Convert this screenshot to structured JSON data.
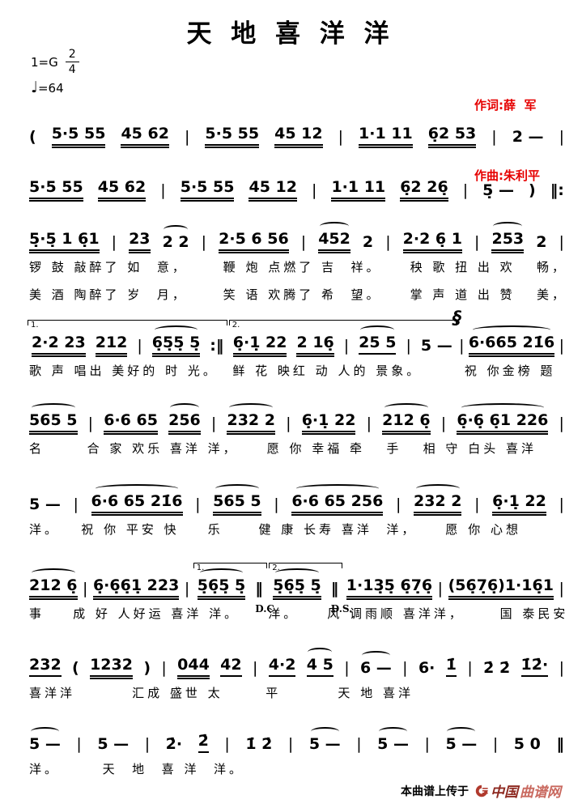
{
  "title": "天 地 喜 洋 洋",
  "credits": {
    "lyricist": "作词:薛  军",
    "composer": "作曲:朱利平"
  },
  "key": {
    "tonic": "1=G",
    "meter_num": "2",
    "meter_den": "4",
    "tempo_note": "♩",
    "tempo": "=64"
  },
  "colors": {
    "credit_red": "#e60000",
    "logo_dark": "#8e2a21",
    "logo_light": "#c9695f"
  },
  "symbols": {
    "segno": "§",
    "quarter_note": "♩"
  },
  "systems": [
    {
      "tokens": [
        {
          "t": "("
        },
        {
          "t": "5·5 55",
          "u": 2
        },
        {
          "t": "45 62",
          "u": 2
        },
        {
          "t": "|",
          "bar": true
        },
        {
          "t": "5·5 55",
          "u": 2
        },
        {
          "t": "45 12",
          "u": 2
        },
        {
          "t": "|",
          "bar": true
        },
        {
          "t": "1·1 11",
          "u": 2
        },
        {
          "t": "6̣2 53",
          "u": 2
        },
        {
          "t": "|",
          "bar": true
        },
        {
          "t": "2 —"
        },
        {
          "t": "|",
          "bar": true
        }
      ],
      "lyrics": []
    },
    {
      "tokens": [
        {
          "t": "5·5 55",
          "u": 2
        },
        {
          "t": "45 62",
          "u": 2
        },
        {
          "t": "|",
          "bar": true
        },
        {
          "t": "5·5 55",
          "u": 2
        },
        {
          "t": "45 12",
          "u": 2
        },
        {
          "t": "|",
          "bar": true
        },
        {
          "t": "1·1 11",
          "u": 2
        },
        {
          "t": "6̣2 26̣",
          "u": 2
        },
        {
          "t": "|",
          "bar": true
        },
        {
          "t": "5̣ —"
        },
        {
          "t": ")"
        },
        {
          "t": "‖:",
          "heavy": true
        }
      ],
      "lyrics": []
    },
    {
      "tokens": [
        {
          "t": "5̣·5̣ 1 6̣1",
          "u": 2
        },
        {
          "t": "|",
          "bar": true
        },
        {
          "t": "23",
          "u": 2
        },
        {
          "t": "2 2",
          "arc": true
        },
        {
          "t": "|",
          "bar": true
        },
        {
          "t": "2·5 6 56",
          "u": 2
        },
        {
          "t": "|",
          "bar": true
        },
        {
          "t": "452",
          "u": 2,
          "arc": true
        },
        {
          "t": "2"
        },
        {
          "t": "|",
          "bar": true
        },
        {
          "t": "2·2 6̣ 1",
          "u": 2
        },
        {
          "t": "|",
          "bar": true
        },
        {
          "t": "253",
          "u": 2,
          "arc": true
        },
        {
          "t": "2"
        },
        {
          "t": "|",
          "bar": true
        }
      ],
      "lyrics": [
        "锣 鼓 敲醉了 如  意，     鞭 炮 点燃了 吉  祥。    秧 歌 扭 出 欢   畅，",
        "美 酒 陶醉了 岁  月，     笑 语 欢腾了 希  望。    掌 声 道 出 赞   美，"
      ]
    },
    {
      "tokens": [
        {
          "volta": "1.",
          "tokens": [
            {
              "t": "2·2 23",
              "u": 2
            },
            {
              "t": "212",
              "u": 2
            },
            {
              "t": "|",
              "bar": true
            },
            {
              "t": "6̣5̣5̣ 5̣",
              "u": 2,
              "arc": true
            },
            {
              "t": ":‖",
              "heavy": true
            }
          ]
        },
        {
          "volta": "2.",
          "tokens": [
            {
              "t": "6̣·1̣ 22",
              "u": 2
            },
            {
              "t": "2 16̣",
              "u": 2
            },
            {
              "t": "|",
              "bar": true
            },
            {
              "t": "25 5",
              "u": 1,
              "arc": true
            },
            {
              "t": "|",
              "bar": true
            },
            {
              "t": "5 —"
            }
          ]
        },
        {
          "t": "|",
          "bar": true,
          "sup": "segno"
        },
        {
          "t": "6·665 21̇6",
          "u": 2,
          "arc": true
        },
        {
          "t": "|",
          "bar": true
        }
      ],
      "lyrics": [
        "歌 声 唱出 美好的 时 光。  鲜 花 映红 动 人的 景象。      祝 你金榜 题"
      ]
    },
    {
      "tokens": [
        {
          "t": "565 5",
          "u": 2,
          "arc": true
        },
        {
          "t": "|",
          "bar": true
        },
        {
          "t": "6·6 65",
          "u": 2
        },
        {
          "t": "256",
          "u": 2,
          "arc": true
        },
        {
          "t": "|",
          "bar": true
        },
        {
          "t": "232 2",
          "u": 2,
          "arc": true
        },
        {
          "t": "|",
          "bar": true
        },
        {
          "t": "6̣·1̣ 22",
          "u": 2
        },
        {
          "t": "|",
          "bar": true
        },
        {
          "t": "212 6̣",
          "u": 2,
          "arc": true
        },
        {
          "t": "|",
          "bar": true
        },
        {
          "t": "6̣·6̣ 6̣1 226",
          "u": 2,
          "arc": true
        },
        {
          "t": "|",
          "bar": true
        }
      ],
      "lyrics": [
        "名      合 家 欢乐 喜洋 洋，    愿 你 幸福 牵   手   相 守 白头 喜洋"
      ]
    },
    {
      "tokens": [
        {
          "t": "5 —"
        },
        {
          "t": "|",
          "bar": true
        },
        {
          "t": "6·6 65 21̇6",
          "u": 2,
          "arc": true
        },
        {
          "t": "|",
          "bar": true
        },
        {
          "t": "565 5",
          "u": 2,
          "arc": true
        },
        {
          "t": "|",
          "bar": true
        },
        {
          "t": "6·6 65 256",
          "u": 2,
          "arc": true
        },
        {
          "t": "|",
          "bar": true
        },
        {
          "t": "232 2",
          "u": 2,
          "arc": true
        },
        {
          "t": "|",
          "bar": true
        },
        {
          "t": "6̣·1̣ 22",
          "u": 2
        },
        {
          "t": "|",
          "bar": true
        }
      ],
      "lyrics": [
        "洋。   祝 你 平安 快    乐     健 康 长寿 喜洋  洋，    愿 你 心想"
      ]
    },
    {
      "tokens": [
        {
          "t": "212 6̣",
          "u": 2,
          "arc": true
        },
        {
          "t": "|",
          "bar": true
        },
        {
          "t": "6̣·6̣6̣1̣ 223",
          "u": 2
        },
        {
          "t": "|",
          "bar": true
        },
        {
          "volta": "1.",
          "tokens": [
            {
              "t": "5̣6̣5̣ 5̣",
              "u": 2,
              "arc": true
            },
            {
              "t": "‖",
              "heavy": true,
              "sub": "D.C."
            }
          ]
        },
        {
          "volta": "2.",
          "tokens": [
            {
              "t": "5̣6̣5̣ 5̣",
              "u": 2,
              "arc": true
            },
            {
              "t": "‖",
              "heavy": true,
              "sub": "D.S."
            }
          ]
        },
        {
          "t": "1·13̣5̣ 6̣7̣6̣",
          "u": 2
        },
        {
          "t": "|",
          "bar": true
        },
        {
          "t": "(56̣7̣6̣)1·16̣1",
          "u": 2
        },
        {
          "t": "|",
          "bar": true
        }
      ],
      "lyrics": [
        "事    成 好 人好运 喜洋 洋。    洋。    风 调雨顺 喜洋洋，     国 泰民安"
      ]
    },
    {
      "tokens": [
        {
          "t": "232",
          "u": 1
        },
        {
          "t": "("
        },
        {
          "t": "1232",
          "u": 2
        },
        {
          "t": ")"
        },
        {
          "t": "|",
          "bar": true
        },
        {
          "t": "044",
          "u": 2
        },
        {
          "t": "42",
          "u": 1
        },
        {
          "t": "|",
          "bar": true
        },
        {
          "t": "4·2",
          "u": 1
        },
        {
          "t": "4 5",
          "u": 1,
          "arc": true
        },
        {
          "t": "|",
          "bar": true
        },
        {
          "t": "6 —",
          "arc": true
        },
        {
          "t": "|",
          "bar": true
        },
        {
          "t": "6·"
        },
        {
          "t": "1̇",
          "u": 1
        },
        {
          "t": "|",
          "bar": true
        },
        {
          "t": "2̇ 2̇"
        },
        {
          "t": "1̇2̇·",
          "u": 1
        },
        {
          "t": "|",
          "bar": true
        }
      ],
      "lyrics": [
        "喜洋洋        汇成 盛世 太      平        天 地 喜洋"
      ]
    },
    {
      "tokens": [
        {
          "t": "5 —",
          "arc": true
        },
        {
          "t": "|",
          "bar": true
        },
        {
          "t": "5 —"
        },
        {
          "t": "|",
          "bar": true
        },
        {
          "t": "2̇·"
        },
        {
          "t": "2̇",
          "u": 1
        },
        {
          "t": "|",
          "bar": true
        },
        {
          "t": "1̇ 2̇"
        },
        {
          "t": "|",
          "bar": true
        },
        {
          "t": "5 —",
          "arc": true
        },
        {
          "t": "|",
          "bar": true
        },
        {
          "t": "5 —",
          "arc": true
        },
        {
          "t": "|",
          "bar": true
        },
        {
          "t": "5 —",
          "arc": true
        },
        {
          "t": "|",
          "bar": true
        },
        {
          "t": "5 0"
        },
        {
          "t": "‖",
          "heavy": true
        }
      ],
      "lyrics": [
        "洋。      天  地  喜 洋  洋。"
      ]
    }
  ],
  "footer": {
    "prefix": "本曲谱上传于",
    "site_primary": "中国",
    "site_secondary": "曲谱网"
  }
}
